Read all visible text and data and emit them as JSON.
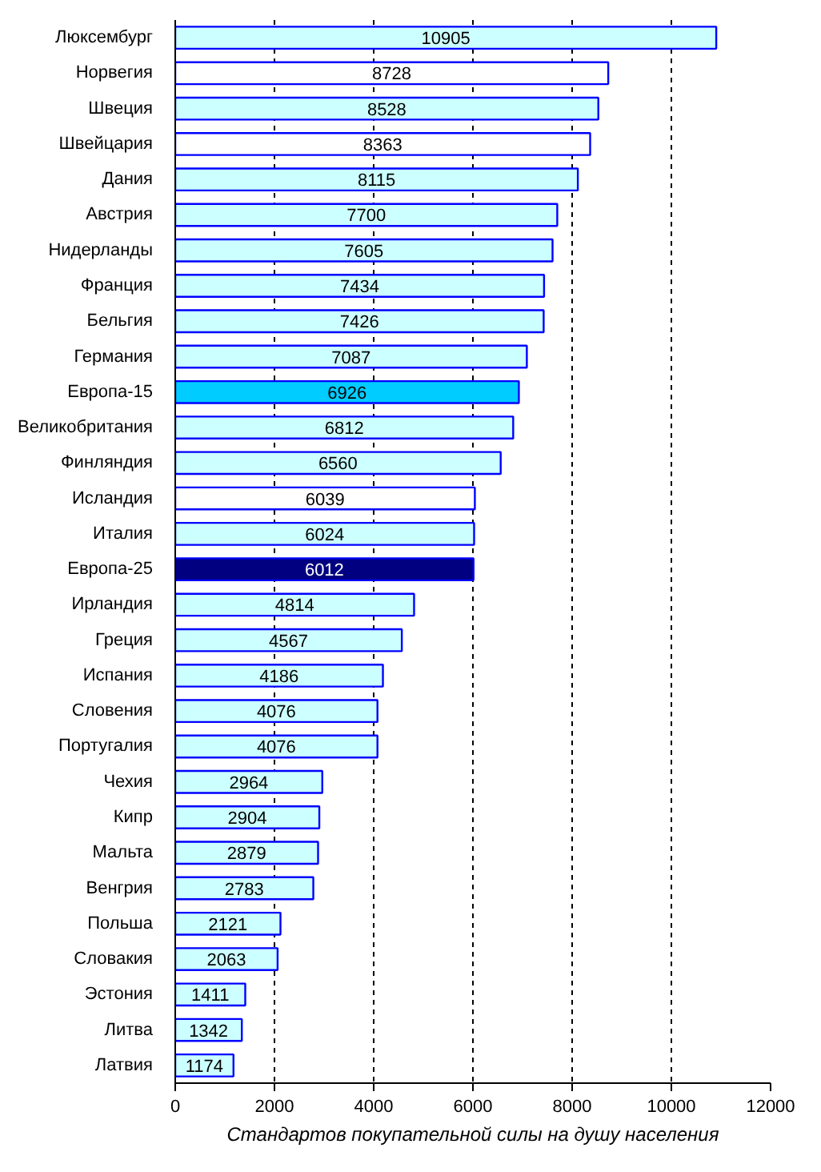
{
  "chart_data": {
    "type": "bar",
    "orientation": "horizontal",
    "xlabel": "Стандартов покупательной силы на душу населения",
    "categories": [
      "Люксембург",
      "Норвегия",
      "Швеция",
      "Швейцария",
      "Дания",
      "Австрия",
      "Нидерланды",
      "Франция",
      "Бельгия",
      "Германия",
      "Европа-15",
      "Великобритания",
      "Финляндия",
      "Исландия",
      "Италия",
      "Европа-25",
      "Ирландия",
      "Греция",
      "Испания",
      "Словения",
      "Португалия",
      "Чехия",
      "Кипр",
      "Мальта",
      "Венгрия",
      "Польша",
      "Словакия",
      "Эстония",
      "Литва",
      "Латвия"
    ],
    "values": [
      10905,
      8728,
      8528,
      8363,
      8115,
      7700,
      7605,
      7434,
      7426,
      7087,
      6926,
      6812,
      6560,
      6039,
      6024,
      6012,
      4814,
      4567,
      4186,
      4076,
      4076,
      2964,
      2904,
      2879,
      2783,
      2121,
      2063,
      1411,
      1342,
      1174
    ],
    "colors": [
      "#ccffff",
      "#ffffff",
      "#ccffff",
      "#ffffff",
      "#ccffff",
      "#ccffff",
      "#ccffff",
      "#ccffff",
      "#ccffff",
      "#ccffff",
      "#00ccff",
      "#ccffff",
      "#ccffff",
      "#ffffff",
      "#ccffff",
      "#000080",
      "#ccffff",
      "#ccffff",
      "#ccffff",
      "#ccffff",
      "#ccffff",
      "#ccffff",
      "#ccffff",
      "#ccffff",
      "#ccffff",
      "#ccffff",
      "#ccffff",
      "#ccffff",
      "#ccffff",
      "#ccffff"
    ],
    "xlim": [
      0,
      12000
    ],
    "xticks": [
      0,
      2000,
      4000,
      6000,
      8000,
      10000,
      12000
    ],
    "grid": "x",
    "data_labels": true
  }
}
